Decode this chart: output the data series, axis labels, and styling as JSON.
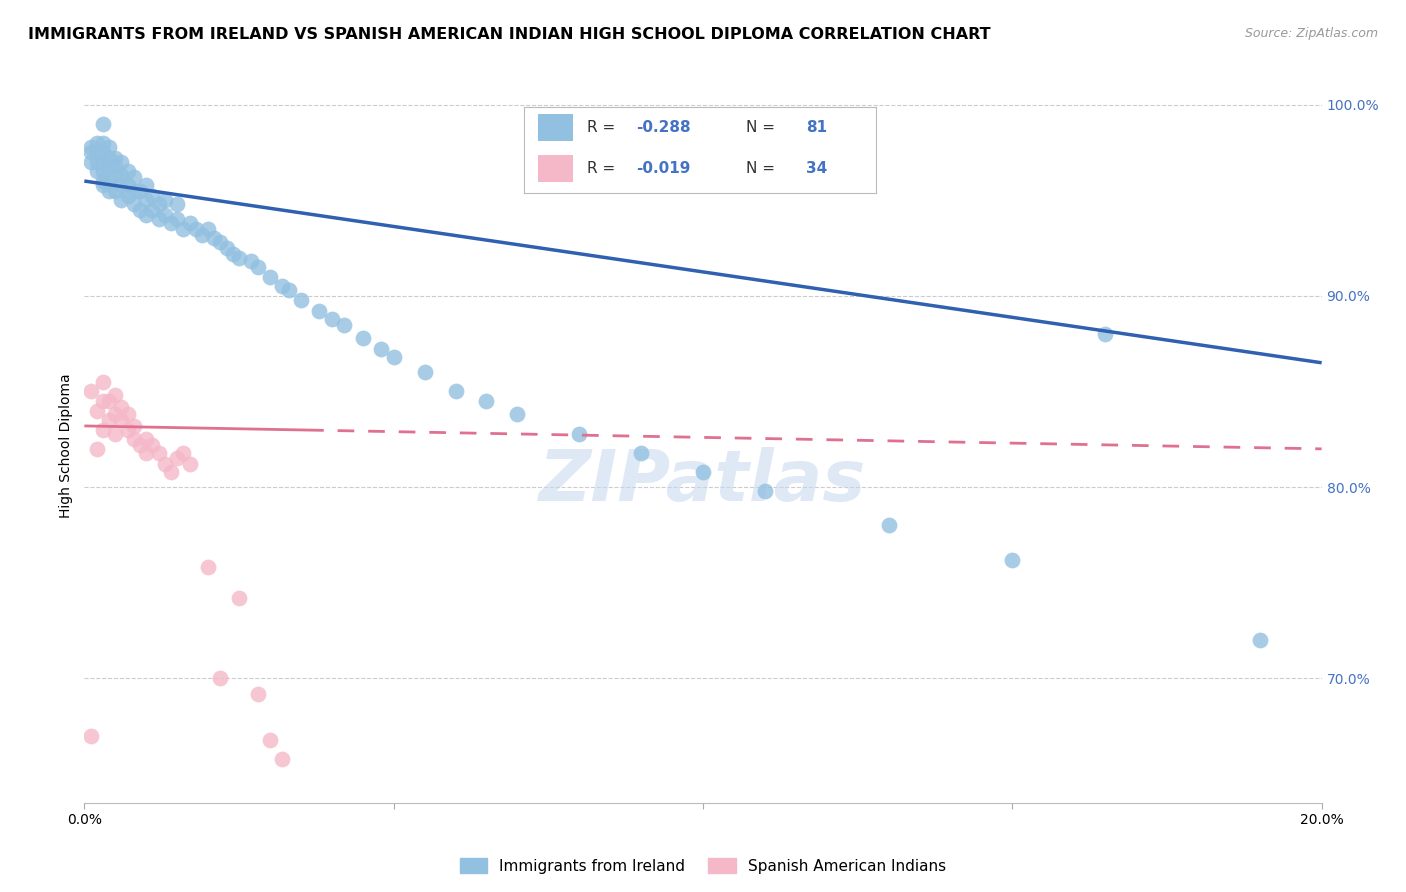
{
  "title": "IMMIGRANTS FROM IRELAND VS SPANISH AMERICAN INDIAN HIGH SCHOOL DIPLOMA CORRELATION CHART",
  "source": "Source: ZipAtlas.com",
  "ylabel": "High School Diploma",
  "xlim": [
    0.0,
    0.2
  ],
  "ylim": [
    0.635,
    1.008
  ],
  "yticks": [
    0.7,
    0.8,
    0.9,
    1.0
  ],
  "ytick_labels": [
    "70.0%",
    "80.0%",
    "90.0%",
    "100.0%"
  ],
  "legend_blue_r": "-0.288",
  "legend_blue_n": "81",
  "legend_pink_r": "-0.019",
  "legend_pink_n": "34",
  "legend_blue_label": "Immigrants from Ireland",
  "legend_pink_label": "Spanish American Indians",
  "blue_color": "#92c0e0",
  "pink_color": "#f5b8c8",
  "blue_line_color": "#3060b0",
  "pink_line_color": "#e07090",
  "watermark": "ZIPatlas",
  "blue_scatter_x": [
    0.001,
    0.001,
    0.001,
    0.002,
    0.002,
    0.002,
    0.002,
    0.003,
    0.003,
    0.003,
    0.003,
    0.003,
    0.003,
    0.004,
    0.004,
    0.004,
    0.004,
    0.004,
    0.005,
    0.005,
    0.005,
    0.005,
    0.006,
    0.006,
    0.006,
    0.006,
    0.007,
    0.007,
    0.007,
    0.008,
    0.008,
    0.008,
    0.009,
    0.009,
    0.01,
    0.01,
    0.01,
    0.011,
    0.011,
    0.012,
    0.012,
    0.013,
    0.013,
    0.014,
    0.015,
    0.015,
    0.016,
    0.017,
    0.018,
    0.019,
    0.02,
    0.021,
    0.022,
    0.023,
    0.024,
    0.025,
    0.027,
    0.028,
    0.03,
    0.032,
    0.033,
    0.035,
    0.038,
    0.04,
    0.042,
    0.045,
    0.048,
    0.05,
    0.055,
    0.06,
    0.065,
    0.07,
    0.08,
    0.09,
    0.1,
    0.11,
    0.13,
    0.15,
    0.165,
    0.19,
    0.003
  ],
  "blue_scatter_y": [
    0.97,
    0.975,
    0.978,
    0.965,
    0.97,
    0.975,
    0.98,
    0.96,
    0.965,
    0.97,
    0.975,
    0.958,
    0.98,
    0.955,
    0.96,
    0.967,
    0.972,
    0.978,
    0.955,
    0.963,
    0.968,
    0.972,
    0.95,
    0.958,
    0.963,
    0.97,
    0.952,
    0.958,
    0.965,
    0.948,
    0.955,
    0.962,
    0.945,
    0.955,
    0.942,
    0.95,
    0.958,
    0.945,
    0.952,
    0.94,
    0.948,
    0.942,
    0.95,
    0.938,
    0.94,
    0.948,
    0.935,
    0.938,
    0.935,
    0.932,
    0.935,
    0.93,
    0.928,
    0.925,
    0.922,
    0.92,
    0.918,
    0.915,
    0.91,
    0.905,
    0.903,
    0.898,
    0.892,
    0.888,
    0.885,
    0.878,
    0.872,
    0.868,
    0.86,
    0.85,
    0.845,
    0.838,
    0.828,
    0.818,
    0.808,
    0.798,
    0.78,
    0.762,
    0.88,
    0.72,
    0.99
  ],
  "pink_scatter_x": [
    0.001,
    0.001,
    0.002,
    0.002,
    0.003,
    0.003,
    0.003,
    0.004,
    0.004,
    0.005,
    0.005,
    0.005,
    0.006,
    0.006,
    0.007,
    0.007,
    0.008,
    0.008,
    0.009,
    0.01,
    0.01,
    0.011,
    0.012,
    0.013,
    0.014,
    0.015,
    0.016,
    0.017,
    0.02,
    0.022,
    0.025,
    0.028,
    0.03,
    0.032
  ],
  "pink_scatter_y": [
    0.67,
    0.85,
    0.82,
    0.84,
    0.83,
    0.845,
    0.855,
    0.835,
    0.845,
    0.828,
    0.838,
    0.848,
    0.835,
    0.842,
    0.83,
    0.838,
    0.825,
    0.832,
    0.822,
    0.818,
    0.825,
    0.822,
    0.818,
    0.812,
    0.808,
    0.815,
    0.818,
    0.812,
    0.758,
    0.7,
    0.742,
    0.692,
    0.668,
    0.658
  ],
  "title_fontsize": 11.5,
  "axis_label_fontsize": 10,
  "tick_fontsize": 10,
  "source_fontsize": 9
}
